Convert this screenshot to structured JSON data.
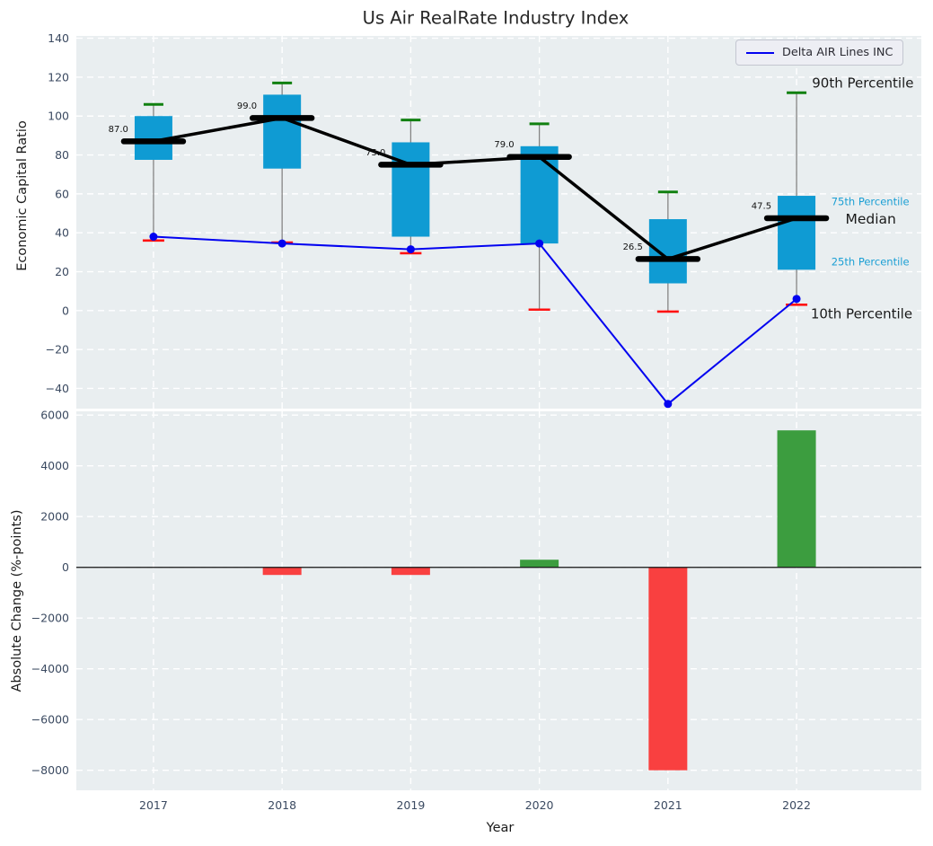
{
  "title": "Us Air RealRate Industry Index",
  "legend": {
    "label": "Delta AIR Lines INC"
  },
  "axes": {
    "x_label": "Year",
    "top_y_label": "Economic Capital Ratio",
    "bottom_y_label": "Absolute Change (%-points)"
  },
  "colors": {
    "panel_bg": "#e9eef0",
    "grid": "#ffffff",
    "tick": "#3b4a61",
    "box_fill": "#0f9bd3",
    "median": "#000000",
    "trend": "#000000",
    "whisker": "#848484",
    "cap_high": "#108010",
    "cap_low": "#ff1111",
    "delta_line": "#0202f0",
    "bar_up": "#3c9d3f",
    "bar_down": "#f94040",
    "zero_line": "#111111",
    "annot_dark": "#1a1a1a",
    "annot_cyan": "#1b9fd4",
    "value_label": "#111111"
  },
  "chart_data": [
    {
      "type": "boxplot-with-line",
      "panel": "top",
      "title": "Us Air RealRate Industry Index",
      "ylabel": "Economic Capital Ratio",
      "xlim": [
        2016.4,
        2022.97
      ],
      "ylim": [
        -50.4,
        141.2
      ],
      "yticks": [
        140,
        120,
        100,
        80,
        60,
        40,
        20,
        0,
        -20,
        -40
      ],
      "grid": true,
      "legend_position": "upper right",
      "categories": [
        2017,
        2018,
        2019,
        2020,
        2021,
        2022
      ],
      "boxes": [
        {
          "year": 2017,
          "p10": 36,
          "p25": 77.5,
          "median": 87,
          "p75": 100,
          "p90": 106,
          "label": "87.0"
        },
        {
          "year": 2018,
          "p10": 35,
          "p25": 73,
          "median": 99,
          "p75": 111,
          "p90": 117,
          "label": "99.0"
        },
        {
          "year": 2019,
          "p10": 29.5,
          "p25": 38,
          "median": 75,
          "p75": 86.5,
          "p90": 98,
          "label": "75.0"
        },
        {
          "year": 2020,
          "p10": 0.5,
          "p25": 34.5,
          "median": 79,
          "p75": 84.5,
          "p90": 96,
          "label": "79.0"
        },
        {
          "year": 2021,
          "p10": -0.5,
          "p25": 14,
          "median": 26.5,
          "p75": 47,
          "p90": 61,
          "label": "26.5"
        },
        {
          "year": 2022,
          "p10": 3,
          "p25": 21,
          "median": 47.5,
          "p75": 59,
          "p90": 112,
          "label": "47.5"
        }
      ],
      "series": [
        {
          "name": "Delta AIR Lines INC",
          "x": [
            2017,
            2018,
            2019,
            2020,
            2021,
            2022
          ],
          "values": [
            38,
            34.5,
            31.5,
            34.5,
            -48,
            6
          ]
        }
      ],
      "annotations": [
        {
          "text": "90th Percentile",
          "x": 2022.12,
          "y": 117,
          "color": "#1a1a1a",
          "size": 15
        },
        {
          "text": "75th Percentile",
          "x": 2022.27,
          "y": 56,
          "color": "#1b9fd4",
          "size": 11.5
        },
        {
          "text": "Median",
          "x": 2022.38,
          "y": 47,
          "color": "#1a1a1a",
          "size": 15.5
        },
        {
          "text": "25th Percentile",
          "x": 2022.27,
          "y": 25,
          "color": "#1b9fd4",
          "size": 11.5
        },
        {
          "text": "10th Percentile",
          "x": 2022.11,
          "y": -1.8,
          "color": "#1a1a1a",
          "size": 15
        }
      ]
    },
    {
      "type": "bar",
      "panel": "bottom",
      "ylabel": "Absolute Change (%-points)",
      "xlabel": "Year",
      "xlim": [
        2016.4,
        2022.97
      ],
      "ylim": [
        -8790,
        6150
      ],
      "yticks": [
        6000,
        4000,
        2000,
        0,
        -2000,
        -4000,
        -6000,
        -8000
      ],
      "grid": true,
      "categories": [
        "2017",
        "2018",
        "2019",
        "2020",
        "2021",
        "2022"
      ],
      "x": [
        2017,
        2018,
        2019,
        2020,
        2021,
        2022
      ],
      "values": [
        0,
        -300,
        -300,
        300,
        -8000,
        5400
      ],
      "bar_colors": [
        "none",
        "#f94040",
        "#f94040",
        "#3c9d3f",
        "#f94040",
        "#3c9d3f"
      ]
    }
  ]
}
